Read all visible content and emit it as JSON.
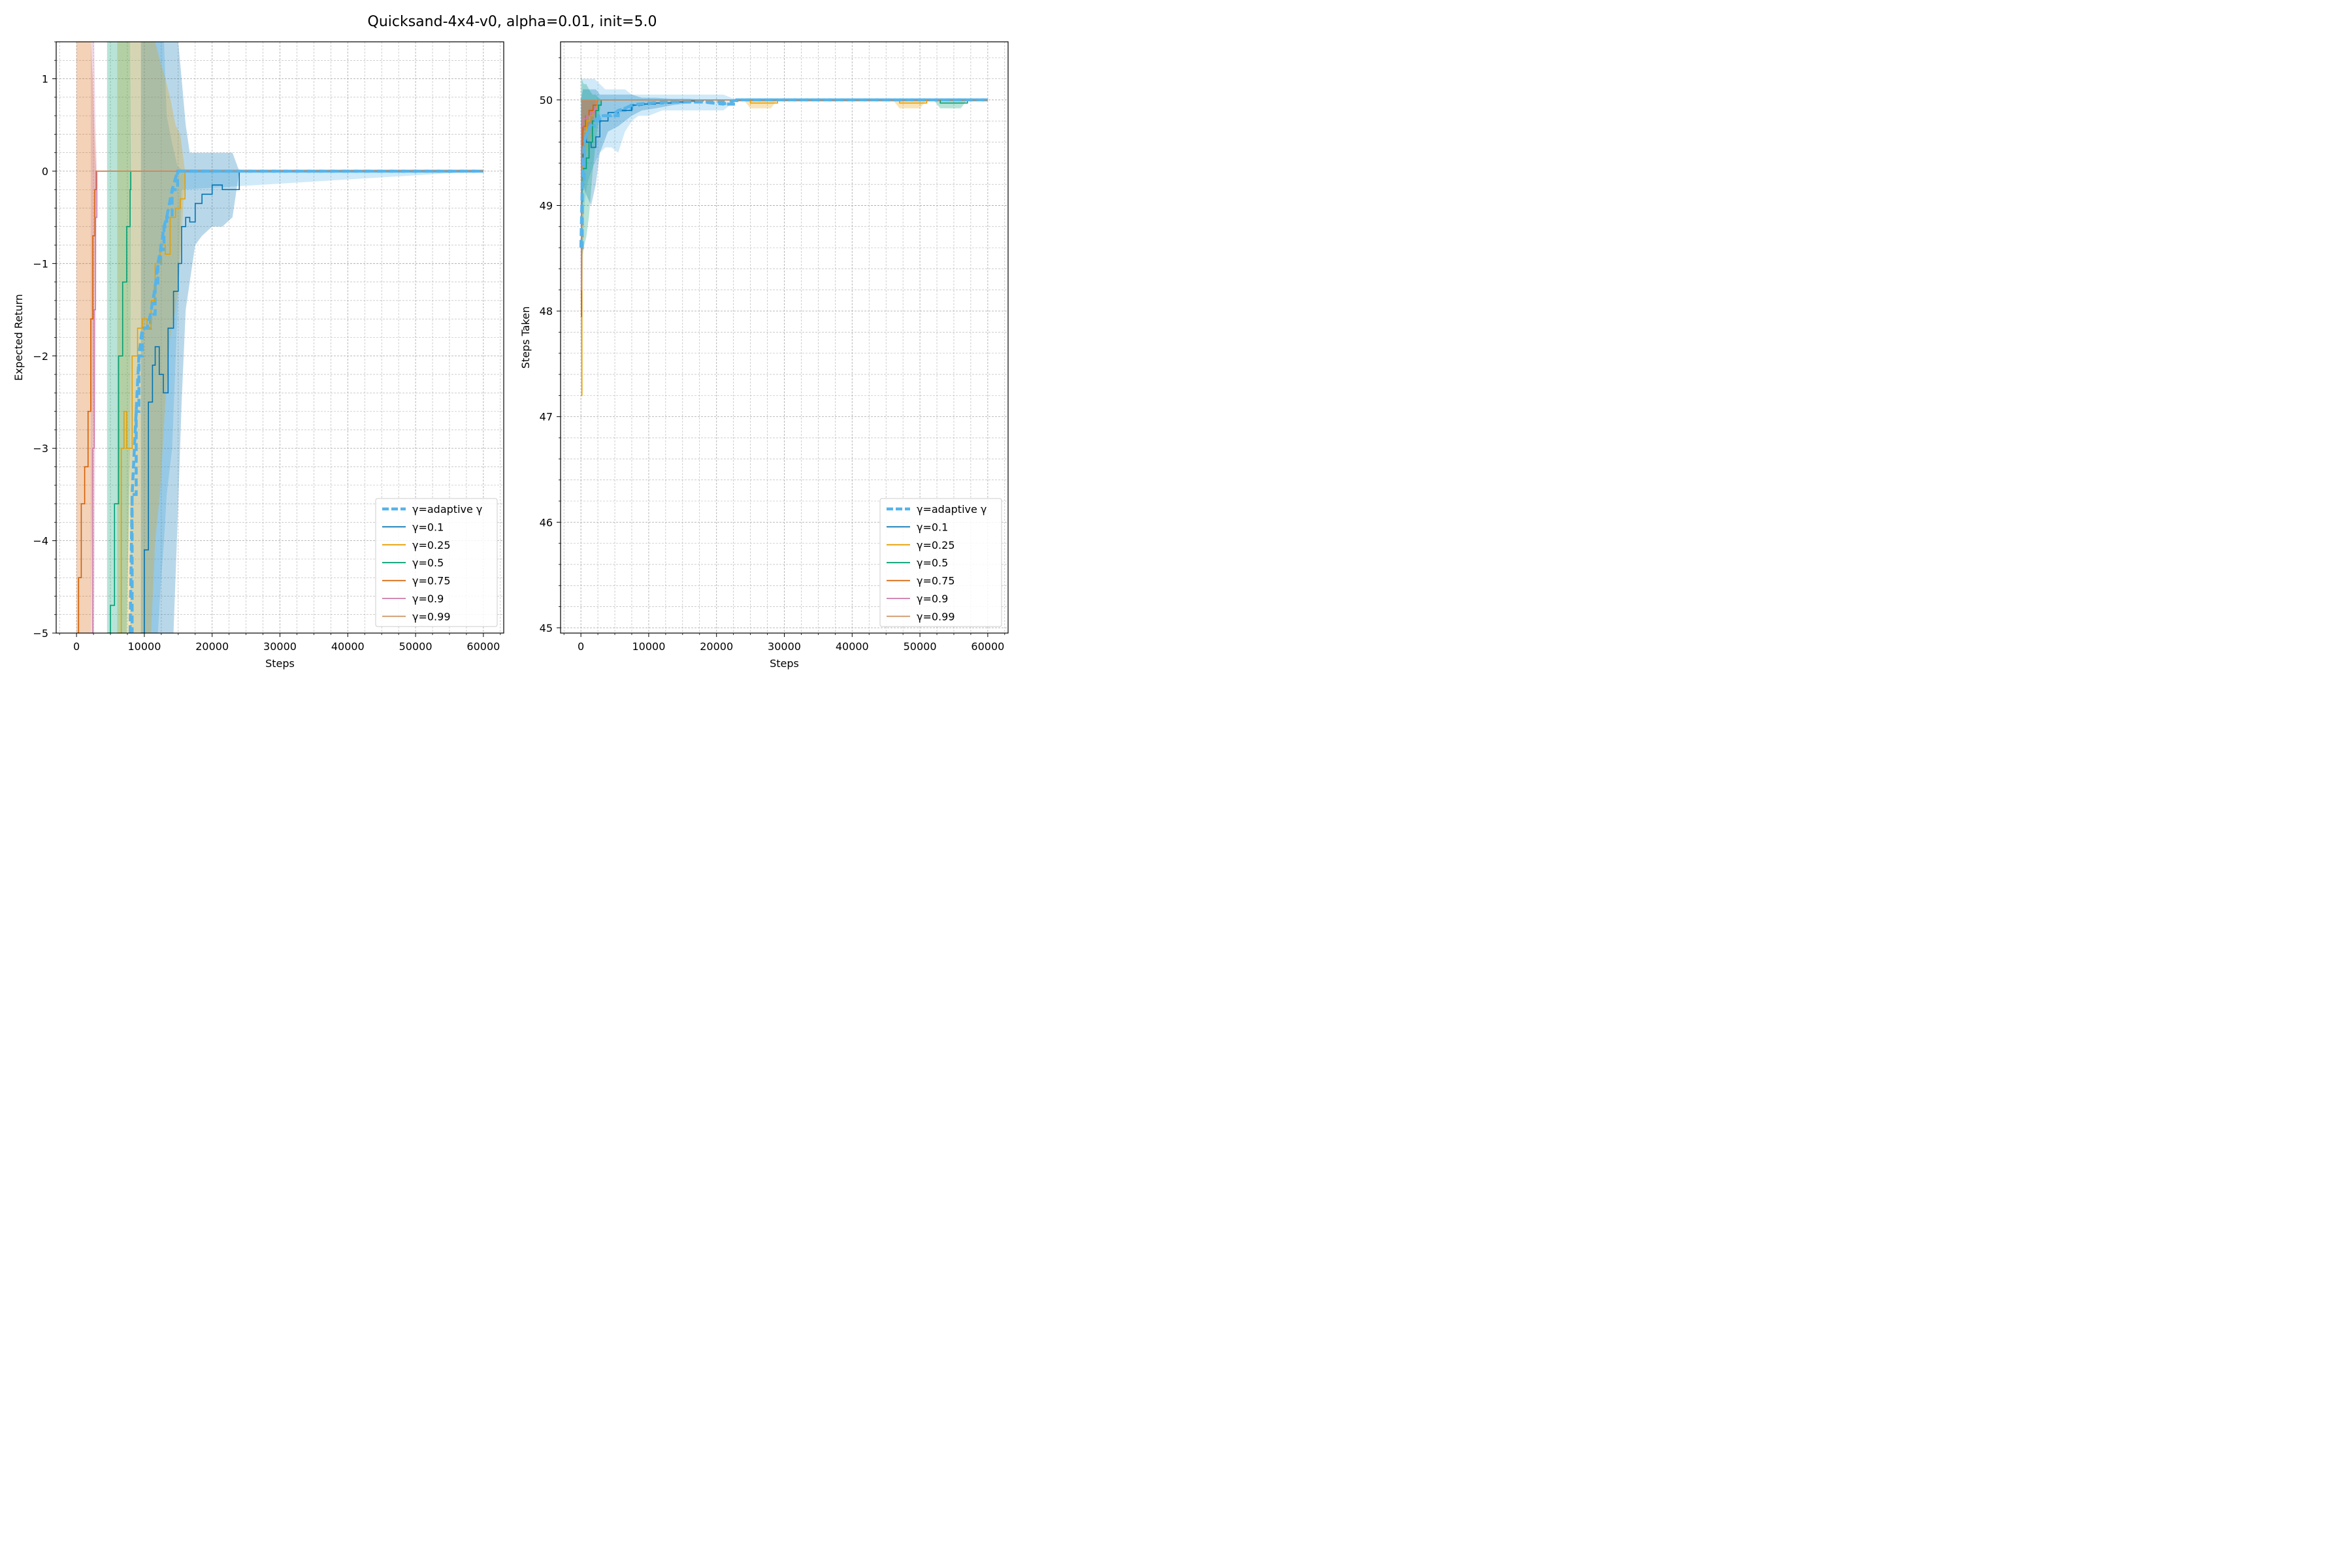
{
  "figure": {
    "suptitle": "Quicksand-4x4-v0, alpha=0.01, init=5.0"
  },
  "legend_entries": [
    "γ=adaptive γ",
    "γ=0.1",
    "γ=0.25",
    "γ=0.5",
    "γ=0.75",
    "γ=0.9",
    "γ=0.99"
  ],
  "colors": {
    "adaptive": "#56b4e9",
    "g0.1": "#0072b2",
    "g0.25": "#e69f00",
    "g0.5": "#009e73",
    "g0.75": "#d55e00",
    "g0.9": "#cc79a7",
    "g0.99": "#ca9161"
  },
  "chart_data": [
    {
      "type": "line",
      "title": "",
      "xlabel": "Steps",
      "ylabel": "Expected Return",
      "xlim": [
        -3000,
        63000
      ],
      "ylim": [
        -5,
        1.4
      ],
      "xticks": [
        0,
        10000,
        20000,
        30000,
        40000,
        50000,
        60000
      ],
      "xtick_labels": [
        "0",
        "10000",
        "20000",
        "30000",
        "40000",
        "50000",
        "60000"
      ],
      "yticks": [
        -5,
        -4,
        -3,
        -2,
        -1,
        0,
        1
      ],
      "ytick_labels": [
        "−5",
        "−4",
        "−3",
        "−2",
        "−1",
        "0",
        "1"
      ],
      "grid": true,
      "legend_position": "lower-right",
      "series": [
        {
          "name": "γ=adaptive γ",
          "color_key": "adaptive",
          "dashed": true,
          "x": [
            7900,
            8200,
            8800,
            9200,
            9700,
            10400,
            10900,
            11600,
            12000,
            12400,
            12900,
            13300,
            14100,
            14900,
            15500,
            60000
          ],
          "y": [
            -5,
            -3.5,
            -2.6,
            -2.0,
            -1.7,
            -1.7,
            -1.55,
            -1.25,
            -1.0,
            -0.85,
            -0.6,
            -0.5,
            -0.2,
            0,
            0,
            0
          ],
          "band_upper": [
            1.4,
            1.4,
            1.4,
            1.4,
            1.4,
            1.4,
            1.4,
            1.4,
            1.4,
            1.4,
            1.4,
            0.6,
            0.3,
            0.05,
            0.02,
            0
          ],
          "band_lower": [
            -5,
            -5,
            -5,
            -5,
            -5,
            -5,
            -5,
            -5,
            -5,
            -4.5,
            -4.0,
            -3.5,
            -3.0,
            -1.5,
            -0.2,
            0
          ]
        },
        {
          "name": "γ=0.1",
          "color_key": "g0.1",
          "dashed": false,
          "x": [
            9500,
            10000,
            10600,
            11200,
            11600,
            12200,
            12800,
            13500,
            14300,
            15000,
            15500,
            16100,
            16700,
            17500,
            18500,
            20000,
            21500,
            23000,
            24000,
            60000
          ],
          "y": [
            -5,
            -4.1,
            -2.5,
            -2.1,
            -1.9,
            -2.2,
            -2.4,
            -1.7,
            -1.3,
            -1.0,
            -0.6,
            -0.5,
            -0.55,
            -0.35,
            -0.25,
            -0.15,
            -0.2,
            -0.2,
            0,
            0
          ],
          "band_upper": [
            1.4,
            1.4,
            1.4,
            1.4,
            1.4,
            1.4,
            1.4,
            1.4,
            1.4,
            1.4,
            1.0,
            0.5,
            0.2,
            0.2,
            0.2,
            0.2,
            0.2,
            0.2,
            0,
            0
          ],
          "band_lower": [
            -5,
            -5,
            -5,
            -5,
            -5,
            -5,
            -5,
            -5,
            -5,
            -3.6,
            -2.5,
            -1.5,
            -1.2,
            -0.8,
            -0.7,
            -0.6,
            -0.6,
            -0.5,
            0,
            0
          ]
        },
        {
          "name": "γ=0.25",
          "color_key": "g0.25",
          "dashed": false,
          "x": [
            6000,
            6600,
            7000,
            7400,
            8200,
            9000,
            9700,
            10400,
            11000,
            11600,
            12300,
            13100,
            13800,
            14600,
            15300,
            16000,
            60000
          ],
          "y": [
            -5,
            -3.0,
            -2.6,
            -3.0,
            -2.0,
            -1.7,
            -1.6,
            -1.7,
            -1.4,
            -1.0,
            -0.8,
            -0.9,
            -0.5,
            -0.4,
            -0.3,
            0,
            0
          ],
          "band_upper": [
            1.4,
            1.4,
            1.4,
            1.4,
            1.4,
            1.4,
            1.4,
            1.4,
            1.4,
            1.4,
            1.2,
            1.0,
            0.8,
            0.5,
            0.4,
            0,
            0
          ],
          "band_lower": [
            -5,
            -5,
            -5,
            -5,
            -5,
            -5,
            -5,
            -5,
            -5,
            -4.0,
            -3.5,
            -2.5,
            -1.8,
            -1.5,
            -1.0,
            0,
            0
          ]
        },
        {
          "name": "γ=0.5",
          "color_key": "g0.5",
          "dashed": false,
          "x": [
            4500,
            5000,
            5600,
            6200,
            6800,
            7400,
            7900,
            8000,
            60000
          ],
          "y": [
            -5,
            -4.7,
            -3.6,
            -2.0,
            -1.2,
            -0.6,
            -0.2,
            0,
            0
          ],
          "band_upper": [
            1.4,
            1.4,
            1.4,
            1.4,
            1.4,
            1.4,
            1.4,
            0,
            0
          ],
          "band_lower": [
            -5,
            -5,
            -5,
            -5,
            -5,
            -5,
            -3.0,
            0,
            0
          ]
        },
        {
          "name": "γ=0.75",
          "color_key": "g0.75",
          "dashed": false,
          "x": [
            0,
            300,
            700,
            1200,
            1700,
            2100,
            2400,
            2700,
            2900,
            60000
          ],
          "y": [
            -5,
            -4.4,
            -3.6,
            -3.2,
            -2.6,
            -1.6,
            -0.7,
            -0.2,
            0,
            0
          ],
          "band_upper": [
            1.4,
            1.4,
            1.4,
            1.4,
            1.4,
            1.4,
            1.0,
            0.3,
            0,
            0
          ],
          "band_lower": [
            -5,
            -5,
            -5,
            -5,
            -5,
            -5,
            -3.0,
            -1.0,
            0,
            0
          ]
        },
        {
          "name": "γ=0.9",
          "color_key": "g0.9",
          "dashed": false,
          "x": [
            2100,
            2400,
            2600,
            2800,
            3000,
            60000
          ],
          "y": [
            -5,
            -3.0,
            -1.5,
            -0.5,
            0,
            0
          ],
          "band_upper": [
            1.4,
            1.4,
            1.4,
            0.5,
            0,
            0
          ],
          "band_lower": [
            -5,
            -5,
            -5,
            -2.5,
            0,
            0
          ]
        },
        {
          "name": "γ=0.99",
          "color_key": "g0.99",
          "dashed": false,
          "x": [
            2900,
            60000
          ],
          "y": [
            0,
            0
          ],
          "band_upper": [
            0,
            0
          ],
          "band_lower": [
            0,
            0
          ]
        }
      ]
    },
    {
      "type": "line",
      "title": "",
      "xlabel": "Steps",
      "ylabel": "Steps Taken",
      "xlim": [
        -3000,
        63000
      ],
      "ylim": [
        44.95,
        50.55
      ],
      "xticks": [
        0,
        10000,
        20000,
        30000,
        40000,
        50000,
        60000
      ],
      "xtick_labels": [
        "0",
        "10000",
        "20000",
        "30000",
        "40000",
        "50000",
        "60000"
      ],
      "yticks": [
        45,
        46,
        47,
        48,
        49,
        50
      ],
      "ytick_labels": [
        "45",
        "46",
        "47",
        "48",
        "49",
        "50"
      ],
      "grid": true,
      "legend_position": "lower-right",
      "series": [
        {
          "name": "γ=adaptive γ",
          "color_key": "adaptive",
          "dashed": true,
          "x": [
            0,
            200,
            500,
            900,
            1400,
            2000,
            2800,
            3600,
            4500,
            5500,
            6500,
            7500,
            8500,
            10000,
            12000,
            15000,
            18000,
            21000,
            23000,
            25000,
            60000
          ],
          "y": [
            48.6,
            49.2,
            49.6,
            49.7,
            49.75,
            49.8,
            49.85,
            49.85,
            49.85,
            49.9,
            49.92,
            49.95,
            49.96,
            49.97,
            49.98,
            49.98,
            49.98,
            49.96,
            50,
            50,
            50
          ],
          "band_upper": [
            49.8,
            50.2,
            50.2,
            50.2,
            50.2,
            50.2,
            50.15,
            50.1,
            50.1,
            50.1,
            50.1,
            50.05,
            50.05,
            50.05,
            50.05,
            50.05,
            50.05,
            50.05,
            50,
            50,
            50
          ],
          "band_lower": [
            47.4,
            48.2,
            49.0,
            49.2,
            49.3,
            49.4,
            49.5,
            49.55,
            49.55,
            49.5,
            49.7,
            49.8,
            49.85,
            49.85,
            49.9,
            49.9,
            49.9,
            49.9,
            50,
            50,
            50
          ]
        },
        {
          "name": "γ=0.1",
          "color_key": "g0.1",
          "dashed": false,
          "x": [
            0,
            300,
            800,
            1500,
            2200,
            2800,
            4000,
            5500,
            7500,
            9000,
            11000,
            13500,
            16000,
            18000,
            60000
          ],
          "y": [
            49.4,
            49.65,
            49.6,
            49.55,
            49.65,
            49.8,
            49.88,
            49.9,
            49.95,
            49.96,
            49.97,
            49.98,
            49.99,
            50,
            50
          ],
          "band_upper": [
            50.0,
            50.1,
            50.1,
            50.1,
            50.1,
            50.05,
            50.05,
            50.05,
            50.05,
            50.02,
            50.02,
            50.01,
            50.01,
            50,
            50
          ],
          "band_lower": [
            48.8,
            49.2,
            49.1,
            49.0,
            49.2,
            49.5,
            49.7,
            49.75,
            49.85,
            49.9,
            49.92,
            49.95,
            49.97,
            50,
            50
          ]
        },
        {
          "name": "γ=0.25",
          "color_key": "g0.25",
          "dashed": false,
          "x": [
            0,
            150,
            400,
            800,
            1300,
            1800,
            2300,
            24000,
            25000,
            28000,
            29000,
            46000,
            47000,
            50000,
            51000,
            60000
          ],
          "y": [
            47.2,
            49.5,
            49.7,
            49.8,
            49.85,
            49.9,
            50,
            50,
            49.97,
            49.97,
            50,
            50,
            49.97,
            49.97,
            50,
            50
          ],
          "band_upper": [
            48.0,
            50.0,
            50.0,
            50.0,
            50.0,
            50.0,
            50,
            50,
            50,
            50,
            50,
            50,
            50,
            50,
            50,
            50
          ],
          "band_lower": [
            46.8,
            49.0,
            49.3,
            49.5,
            49.6,
            49.7,
            50,
            50,
            49.92,
            49.92,
            50,
            50,
            49.92,
            49.92,
            50,
            50
          ]
        },
        {
          "name": "γ=0.5",
          "color_key": "g0.5",
          "dashed": false,
          "x": [
            0,
            150,
            400,
            800,
            1200,
            1700,
            2200,
            2600,
            3000,
            52000,
            53000,
            56000,
            57000,
            60000
          ],
          "y": [
            49.0,
            49.3,
            49.35,
            49.45,
            49.6,
            49.8,
            49.9,
            49.95,
            50,
            50,
            49.97,
            49.97,
            50,
            50
          ],
          "band_upper": [
            50.25,
            50.2,
            50.15,
            50.15,
            50.1,
            50.05,
            50.05,
            50.02,
            50,
            50,
            50,
            50,
            50,
            50
          ],
          "band_lower": [
            48.3,
            48.5,
            48.6,
            48.7,
            48.9,
            49.3,
            49.6,
            49.8,
            50,
            50,
            49.92,
            49.92,
            50,
            50
          ]
        },
        {
          "name": "γ=0.75",
          "color_key": "g0.75",
          "dashed": false,
          "x": [
            0,
            100,
            300,
            700,
            1200,
            1800,
            2400,
            60000
          ],
          "y": [
            47.95,
            49.5,
            49.75,
            49.85,
            49.9,
            49.95,
            50,
            50
          ],
          "band_upper": [
            49.0,
            50.0,
            50.0,
            50.0,
            50.0,
            50.0,
            50,
            50
          ],
          "band_lower": [
            47.0,
            49.0,
            49.4,
            49.6,
            49.7,
            49.8,
            50,
            50
          ]
        },
        {
          "name": "γ=0.9",
          "color_key": "g0.9",
          "dashed": false,
          "x": [
            0,
            100,
            300,
            800,
            1400,
            2000,
            2400,
            60000
          ],
          "y": [
            48.2,
            49.75,
            49.82,
            49.85,
            49.88,
            49.92,
            50,
            50
          ],
          "band_upper": [
            49.5,
            50.0,
            50.0,
            50.0,
            50.0,
            50.0,
            50,
            50
          ],
          "band_lower": [
            47.5,
            49.5,
            49.6,
            49.6,
            49.7,
            49.8,
            50,
            50
          ]
        },
        {
          "name": "γ=0.99",
          "color_key": "g0.99",
          "dashed": false,
          "x": [
            0,
            200,
            60000
          ],
          "y": [
            50,
            50,
            50
          ],
          "band_upper": [
            50,
            50,
            50
          ],
          "band_lower": [
            50,
            50,
            50
          ]
        }
      ]
    }
  ]
}
